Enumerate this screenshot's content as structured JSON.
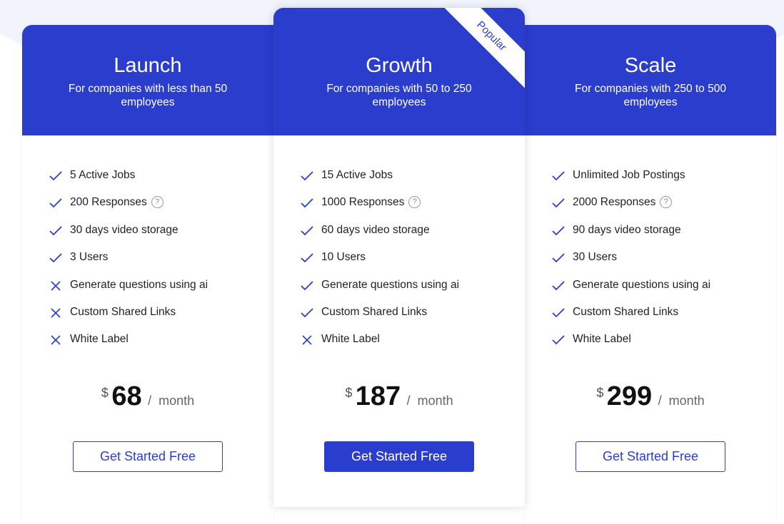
{
  "accent": "#2b3dcc",
  "plans": [
    {
      "name": "Launch",
      "subtitle": "For companies with less than 50 employees",
      "currency": "$",
      "price": "68",
      "period": "/  month",
      "cta": "Get Started Free",
      "features": [
        {
          "text": "5 Active Jobs",
          "included": true
        },
        {
          "text": "200 Responses",
          "included": true,
          "help": "?"
        },
        {
          "text": "30 days video storage",
          "included": true
        },
        {
          "text": "3 Users",
          "included": true
        },
        {
          "text": "Generate questions using ai",
          "included": false
        },
        {
          "text": "Custom Shared Links",
          "included": false
        },
        {
          "text": "White Label",
          "included": false
        }
      ]
    },
    {
      "name": "Growth",
      "subtitle": "For companies with 50 to 250 employees",
      "badge": "Popular",
      "currency": "$",
      "price": "187",
      "period": "/  month",
      "cta": "Get Started Free",
      "features": [
        {
          "text": "15 Active Jobs",
          "included": true
        },
        {
          "text": "1000 Responses",
          "included": true,
          "help": "?"
        },
        {
          "text": "60 days video storage",
          "included": true
        },
        {
          "text": "10 Users",
          "included": true
        },
        {
          "text": "Generate questions using ai",
          "included": true
        },
        {
          "text": "Custom Shared Links",
          "included": true
        },
        {
          "text": "White Label",
          "included": false
        }
      ]
    },
    {
      "name": "Scale",
      "subtitle": "For companies with 250 to 500 employees",
      "currency": "$",
      "price": "299",
      "period": "/  month",
      "cta": "Get Started Free",
      "features": [
        {
          "text": "Unlimited Job Postings",
          "included": true
        },
        {
          "text": "2000 Responses",
          "included": true,
          "help": "?"
        },
        {
          "text": "90 days video storage",
          "included": true
        },
        {
          "text": "30 Users",
          "included": true
        },
        {
          "text": "Generate questions using ai",
          "included": true
        },
        {
          "text": "Custom Shared Links",
          "included": true
        },
        {
          "text": "White Label",
          "included": true
        }
      ]
    }
  ]
}
